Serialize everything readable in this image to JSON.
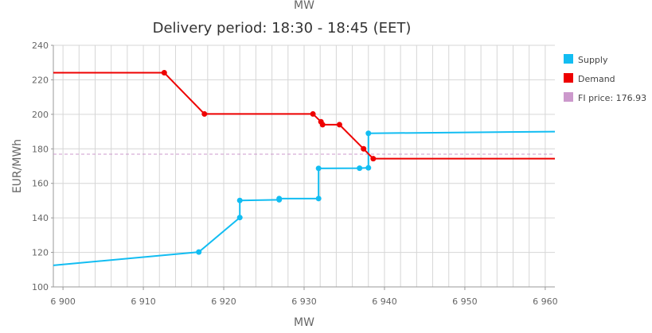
{
  "chart_data": {
    "type": "line",
    "top_label": "MW",
    "title": "Delivery period: 18:30 - 18:45 (EET)",
    "xlabel": "MW",
    "ylabel": "EUR/MWh",
    "xlim": [
      6898.8,
      6961.2
    ],
    "ylim": [
      100,
      240
    ],
    "x_ticks": [
      6900,
      6910,
      6920,
      6930,
      6940,
      6950,
      6960
    ],
    "x_tick_labels": [
      "6 900",
      "6 910",
      "6 920",
      "6 930",
      "6 940",
      "6 950",
      "6 960"
    ],
    "y_ticks": [
      100,
      120,
      140,
      160,
      180,
      200,
      220,
      240
    ],
    "y_tick_labels": [
      "100",
      "120",
      "140",
      "160",
      "180",
      "200",
      "220",
      "240"
    ],
    "x_grid_step": 2,
    "grid": true,
    "legend_position": "right",
    "series": [
      {
        "name": "Supply",
        "color": "#12bdf2",
        "points": [
          [
            6898.8,
            112.5
          ],
          [
            6916.9,
            120.2
          ],
          [
            6922.0,
            140.2
          ],
          [
            6922.0,
            150.1
          ],
          [
            6926.9,
            150.5
          ],
          [
            6926.9,
            151.2
          ],
          [
            6931.8,
            151.2
          ],
          [
            6931.8,
            168.7
          ],
          [
            6936.9,
            168.8
          ],
          [
            6938.0,
            169.0
          ],
          [
            6938.0,
            189.0
          ],
          [
            6961.2,
            190.0
          ]
        ],
        "markers": [
          [
            6916.9,
            120.2
          ],
          [
            6922.0,
            140.2
          ],
          [
            6922.0,
            150.1
          ],
          [
            6926.9,
            150.5
          ],
          [
            6926.9,
            151.2
          ],
          [
            6931.8,
            151.2
          ],
          [
            6931.8,
            168.7
          ],
          [
            6936.9,
            168.8
          ],
          [
            6938.0,
            169.0
          ],
          [
            6938.0,
            189.0
          ]
        ]
      },
      {
        "name": "Demand",
        "color": "#ee0000",
        "points": [
          [
            6898.8,
            224.1
          ],
          [
            6912.6,
            224.1
          ],
          [
            6917.6,
            200.2
          ],
          [
            6931.1,
            200.2
          ],
          [
            6932.1,
            195.7
          ],
          [
            6932.3,
            194.0
          ],
          [
            6934.4,
            194.0
          ],
          [
            6937.4,
            180.0
          ],
          [
            6938.6,
            174.3
          ],
          [
            6961.2,
            174.3
          ]
        ],
        "markers": [
          [
            6912.6,
            224.1
          ],
          [
            6917.6,
            200.2
          ],
          [
            6931.1,
            200.2
          ],
          [
            6932.1,
            195.7
          ],
          [
            6932.3,
            194.0
          ],
          [
            6934.4,
            194.0
          ],
          [
            6937.4,
            180.0
          ],
          [
            6938.6,
            174.3
          ]
        ]
      }
    ],
    "reference_line": {
      "name": "FI price: 176.93",
      "value": 176.93,
      "color": "#cc99cc"
    }
  }
}
